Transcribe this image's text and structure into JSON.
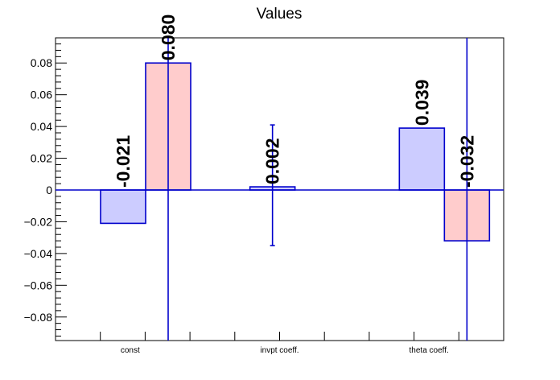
{
  "chart_data": {
    "type": "bar",
    "title": "Values",
    "xlabel": "",
    "ylabel": "",
    "ylim": [
      -0.096,
      0.096
    ],
    "yticks": [
      -0.08,
      -0.06,
      -0.04,
      -0.02,
      0,
      0.02,
      0.04,
      0.06,
      0.08
    ],
    "ytick_labels": [
      "−0.08",
      "−0.06",
      "−0.04",
      "−0.02",
      "0",
      "0.02",
      "0.04",
      "0.06",
      "0.08"
    ],
    "categories": [
      "const",
      "invpt coeff.",
      "theta coeff."
    ],
    "bars": [
      {
        "category": "const",
        "slot": 0,
        "value": -0.021,
        "label": "-0.021",
        "err_low": null,
        "err_high": null,
        "color": "blue"
      },
      {
        "category": "const",
        "slot": 1,
        "value": 0.08,
        "label": "0.080",
        "err_low": -0.096,
        "err_high": 0.096,
        "color": "red"
      },
      {
        "category": "invpt coeff.",
        "slot": 0,
        "value": 0.002,
        "label": "0.002",
        "err_low": -0.035,
        "err_high": 0.041,
        "color": "blue"
      },
      {
        "category": "theta coeff.",
        "slot": 0,
        "value": 0.039,
        "label": "0.039",
        "err_low": null,
        "err_high": null,
        "color": "blue"
      },
      {
        "category": "theta coeff.",
        "slot": 1,
        "value": -0.032,
        "label": "-0.032",
        "err_low": -0.096,
        "err_high": 0.096,
        "color": "red"
      }
    ],
    "colors": {
      "blue_fill": "#ccccff",
      "red_fill": "#ffcccc",
      "outline": "#0000cc",
      "axis": "#000000"
    }
  }
}
